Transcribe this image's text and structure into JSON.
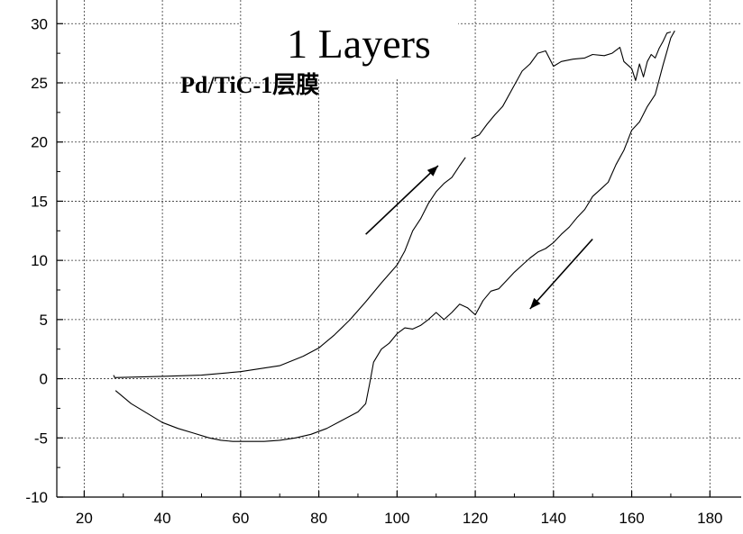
{
  "chart_data": {
    "type": "line",
    "title": "1 Layers",
    "subtitle": "Pd/TiC-1层膜",
    "xlabel": "",
    "ylabel": "",
    "xlim": [
      13,
      188
    ],
    "ylim": [
      -10,
      32
    ],
    "x_ticks": [
      "20",
      "40",
      "60",
      "80",
      "100",
      "120",
      "140",
      "160",
      "180"
    ],
    "y_ticks": [
      "-10",
      "-5",
      "0",
      "5",
      "10",
      "15",
      "20",
      "25",
      "30"
    ],
    "grid": true,
    "legend": "none",
    "series": [
      {
        "x": [
          27.5,
          27.8,
          40,
          50,
          60,
          70,
          76,
          80,
          84,
          88,
          92,
          96,
          100,
          102,
          104,
          106,
          108,
          110,
          112,
          114,
          116,
          117.5
        ],
        "y": [
          0.3,
          0.1,
          0.2,
          0.3,
          0.6,
          1.1,
          1.9,
          2.6,
          3.7,
          5.0,
          6.5,
          8.1,
          9.6,
          10.8,
          12.5,
          13.5,
          14.8,
          15.8,
          16.5,
          17.0,
          18.0,
          18.7
        ]
      },
      {
        "x": [
          119,
          121,
          123,
          125,
          127,
          130,
          132,
          134,
          136,
          138,
          140,
          142,
          145,
          148,
          150,
          153,
          155,
          157,
          158,
          160,
          161,
          162,
          163,
          164,
          165,
          166,
          167,
          168,
          169,
          170
        ],
        "y": [
          20.3,
          20.6,
          21.5,
          22.3,
          23.0,
          24.8,
          26.0,
          26.6,
          27.5,
          27.7,
          26.4,
          26.8,
          27.0,
          27.1,
          27.4,
          27.3,
          27.5,
          28.0,
          26.8,
          26.2,
          25.2,
          26.6,
          25.5,
          26.8,
          27.4,
          27.1,
          27.9,
          28.5,
          29.2,
          29.3
        ]
      },
      {
        "x": [
          171,
          170,
          168,
          166,
          164,
          162,
          160,
          158,
          156,
          154,
          152,
          150,
          148,
          146,
          144,
          142,
          140,
          138,
          136,
          134,
          132,
          130,
          128,
          126,
          124,
          122,
          120,
          118,
          116,
          114,
          112,
          110,
          108,
          106,
          104,
          102,
          100,
          98,
          96,
          94,
          93,
          92,
          90,
          86,
          82,
          78,
          74,
          70,
          66,
          62,
          58,
          55,
          52,
          48,
          44,
          40,
          36,
          32,
          28
        ],
        "y": [
          29.4,
          28.8,
          26.5,
          24.0,
          23.0,
          21.7,
          21.0,
          19.3,
          18.1,
          16.6,
          16.0,
          15.4,
          14.3,
          13.6,
          12.8,
          12.2,
          11.5,
          11.0,
          10.7,
          10.2,
          9.6,
          9.0,
          8.3,
          7.6,
          7.4,
          6.6,
          5.4,
          6.0,
          6.3,
          5.6,
          5.0,
          5.6,
          5.0,
          4.5,
          4.2,
          4.3,
          3.8,
          3.0,
          2.5,
          1.4,
          -0.4,
          -2.1,
          -2.8,
          -3.5,
          -4.2,
          -4.7,
          -5.0,
          -5.2,
          -5.3,
          -5.3,
          -5.3,
          -5.2,
          -5.0,
          -4.6,
          -4.2,
          -3.7,
          -2.9,
          -2.1,
          -1.0
        ]
      }
    ],
    "arrows": [
      {
        "x1": 92,
        "y1": 12.2,
        "x2": 110.5,
        "y2": 18.0
      },
      {
        "x1": 150,
        "y1": 11.8,
        "x2": 134,
        "y2": 5.9
      }
    ]
  }
}
